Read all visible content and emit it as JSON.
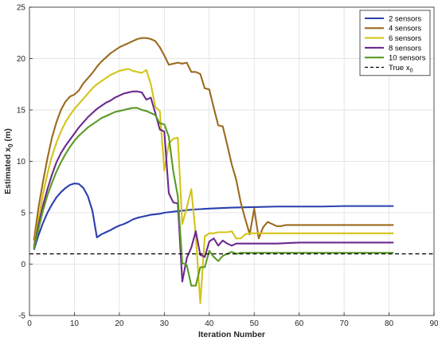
{
  "chart_data": {
    "type": "line",
    "xlabel": "Iteration Number",
    "ylabel_main": "Estimated x",
    "ylabel_sub": "0",
    "ylabel_unit": " (m)",
    "xlim": [
      0,
      90
    ],
    "ylim": [
      -5,
      25
    ],
    "xticks": [
      0,
      10,
      20,
      30,
      40,
      50,
      60,
      70,
      80,
      90
    ],
    "yticks": [
      -5,
      0,
      5,
      10,
      15,
      20,
      25
    ],
    "grid": true,
    "legend_position": "top-right",
    "series": [
      {
        "name": "2 sensors",
        "color": "#2b3fb0",
        "x": [
          1,
          2,
          3,
          4,
          5,
          6,
          7,
          8,
          9,
          10,
          11,
          12,
          13,
          14,
          15,
          16,
          17,
          18,
          19,
          20,
          21,
          22,
          23,
          24,
          25,
          26,
          27,
          28,
          29,
          30,
          32,
          34,
          36,
          38,
          40,
          45,
          50,
          55,
          60,
          65,
          70,
          75,
          80,
          81
        ],
        "y": [
          1.4,
          2.8,
          4.0,
          5.0,
          5.8,
          6.5,
          7.0,
          7.4,
          7.7,
          7.85,
          7.8,
          7.4,
          6.6,
          5.2,
          2.6,
          2.9,
          3.1,
          3.3,
          3.55,
          3.75,
          3.9,
          4.1,
          4.35,
          4.5,
          4.6,
          4.7,
          4.8,
          4.85,
          4.9,
          5.0,
          5.1,
          5.2,
          5.3,
          5.35,
          5.4,
          5.5,
          5.55,
          5.6,
          5.6,
          5.6,
          5.65,
          5.65,
          5.65,
          5.65
        ]
      },
      {
        "name": "4 sensors",
        "color": "#9c6a1d",
        "x": [
          1,
          2,
          3,
          4,
          5,
          6,
          7,
          8,
          9,
          10,
          11,
          12,
          13,
          14,
          15,
          16,
          17,
          18,
          19,
          20,
          21,
          22,
          23,
          24,
          25,
          26,
          27,
          28,
          29,
          30,
          31,
          32,
          33,
          34,
          35,
          36,
          37,
          38,
          39,
          40,
          41,
          42,
          43,
          44,
          45,
          46,
          47,
          48,
          49,
          50,
          51,
          52,
          53,
          54,
          55,
          56,
          57,
          58,
          60,
          65,
          70,
          75,
          80,
          81
        ],
        "y": [
          2.3,
          5.5,
          8.0,
          10.3,
          12.3,
          13.8,
          15.0,
          15.8,
          16.3,
          16.5,
          16.9,
          17.6,
          18.1,
          18.6,
          19.2,
          19.7,
          20.1,
          20.5,
          20.8,
          21.1,
          21.3,
          21.5,
          21.7,
          21.9,
          22.0,
          22.0,
          21.9,
          21.7,
          21.1,
          20.3,
          19.4,
          19.5,
          19.6,
          19.5,
          19.6,
          18.7,
          18.7,
          18.5,
          17.1,
          17.0,
          15.2,
          13.5,
          13.4,
          11.6,
          9.7,
          8.2,
          6.0,
          4.4,
          2.9,
          5.4,
          2.5,
          3.6,
          4.1,
          3.9,
          3.7,
          3.7,
          3.8,
          3.8,
          3.8,
          3.8,
          3.8,
          3.8,
          3.8,
          3.8
        ]
      },
      {
        "name": "6 sensors",
        "color": "#d4c418",
        "x": [
          1,
          2,
          3,
          4,
          5,
          6,
          7,
          8,
          9,
          10,
          11,
          12,
          13,
          14,
          15,
          16,
          17,
          18,
          19,
          20,
          21,
          22,
          23,
          24,
          25,
          26,
          27,
          28,
          29,
          30,
          31,
          32,
          33,
          34,
          35,
          36,
          37,
          38,
          39,
          40,
          41,
          42,
          43,
          44,
          45,
          46,
          47,
          48,
          49,
          50,
          51,
          52,
          55,
          60,
          65,
          70,
          75,
          80,
          81
        ],
        "y": [
          1.8,
          4.3,
          6.8,
          8.8,
          10.5,
          11.8,
          12.9,
          13.8,
          14.5,
          15.1,
          15.6,
          16.1,
          16.6,
          17.1,
          17.5,
          17.8,
          18.1,
          18.4,
          18.6,
          18.8,
          18.9,
          19.0,
          18.8,
          18.7,
          18.6,
          18.9,
          17.5,
          15.3,
          14.9,
          9.1,
          11.7,
          12.2,
          12.3,
          3.9,
          5.5,
          7.3,
          2.8,
          -3.8,
          2.7,
          3.0,
          3.0,
          3.1,
          3.1,
          3.1,
          3.2,
          2.5,
          2.5,
          2.9,
          3.0,
          3.0,
          3.0,
          3.0,
          3.0,
          3.0,
          3.0,
          3.0,
          3.0,
          3.0,
          3.0
        ]
      },
      {
        "name": "8 sensors",
        "color": "#6d2a8f",
        "x": [
          1,
          2,
          3,
          4,
          5,
          6,
          7,
          8,
          9,
          10,
          11,
          12,
          13,
          14,
          15,
          16,
          17,
          18,
          19,
          20,
          21,
          22,
          23,
          24,
          25,
          26,
          27,
          28,
          29,
          30,
          31,
          32,
          33,
          34,
          35,
          36,
          37,
          38,
          39,
          40,
          41,
          42,
          43,
          44,
          45,
          46,
          47,
          48,
          50,
          55,
          60,
          65,
          70,
          75,
          80,
          81
        ],
        "y": [
          1.6,
          3.8,
          5.7,
          7.3,
          8.7,
          9.9,
          10.8,
          11.5,
          12.1,
          12.7,
          13.3,
          13.8,
          14.3,
          14.7,
          15.1,
          15.4,
          15.7,
          15.9,
          16.2,
          16.4,
          16.6,
          16.7,
          16.8,
          16.8,
          16.7,
          16.0,
          16.2,
          14.7,
          13.1,
          12.9,
          6.9,
          6.0,
          5.9,
          -1.7,
          0.6,
          1.6,
          3.2,
          0.9,
          0.7,
          2.2,
          2.5,
          1.8,
          2.3,
          2.0,
          1.8,
          2.0,
          2.0,
          2.0,
          2.0,
          2.0,
          2.1,
          2.1,
          2.1,
          2.1,
          2.1,
          2.1
        ]
      },
      {
        "name": "10 sensors",
        "color": "#5a9a24",
        "x": [
          1,
          2,
          3,
          4,
          5,
          6,
          7,
          8,
          9,
          10,
          11,
          12,
          13,
          14,
          15,
          16,
          17,
          18,
          19,
          20,
          21,
          22,
          23,
          24,
          25,
          26,
          27,
          28,
          29,
          30,
          31,
          32,
          33,
          34,
          35,
          36,
          37,
          38,
          39,
          40,
          41,
          42,
          43,
          44,
          45,
          46,
          47,
          48,
          50,
          55,
          60,
          65,
          70,
          75,
          80,
          81
        ],
        "y": [
          1.5,
          3.4,
          5.2,
          6.7,
          7.9,
          9.0,
          9.9,
          10.7,
          11.4,
          12.0,
          12.5,
          12.9,
          13.3,
          13.6,
          13.9,
          14.2,
          14.4,
          14.6,
          14.8,
          14.9,
          15.0,
          15.1,
          15.2,
          15.2,
          15.0,
          14.9,
          14.7,
          14.5,
          13.7,
          13.6,
          12.4,
          9.0,
          6.6,
          0.1,
          -0.1,
          -2.1,
          -2.1,
          -0.3,
          -0.3,
          1.3,
          0.7,
          0.3,
          0.8,
          1.0,
          1.2,
          1.0,
          1.1,
          1.1,
          1.1,
          1.1,
          1.1,
          1.1,
          1.1,
          1.1,
          1.1,
          1.1
        ]
      },
      {
        "name": "True x",
        "name_sub": "0",
        "color": "#000000",
        "dashed": true,
        "x": [
          0,
          90
        ],
        "y": [
          1,
          1
        ]
      }
    ]
  }
}
